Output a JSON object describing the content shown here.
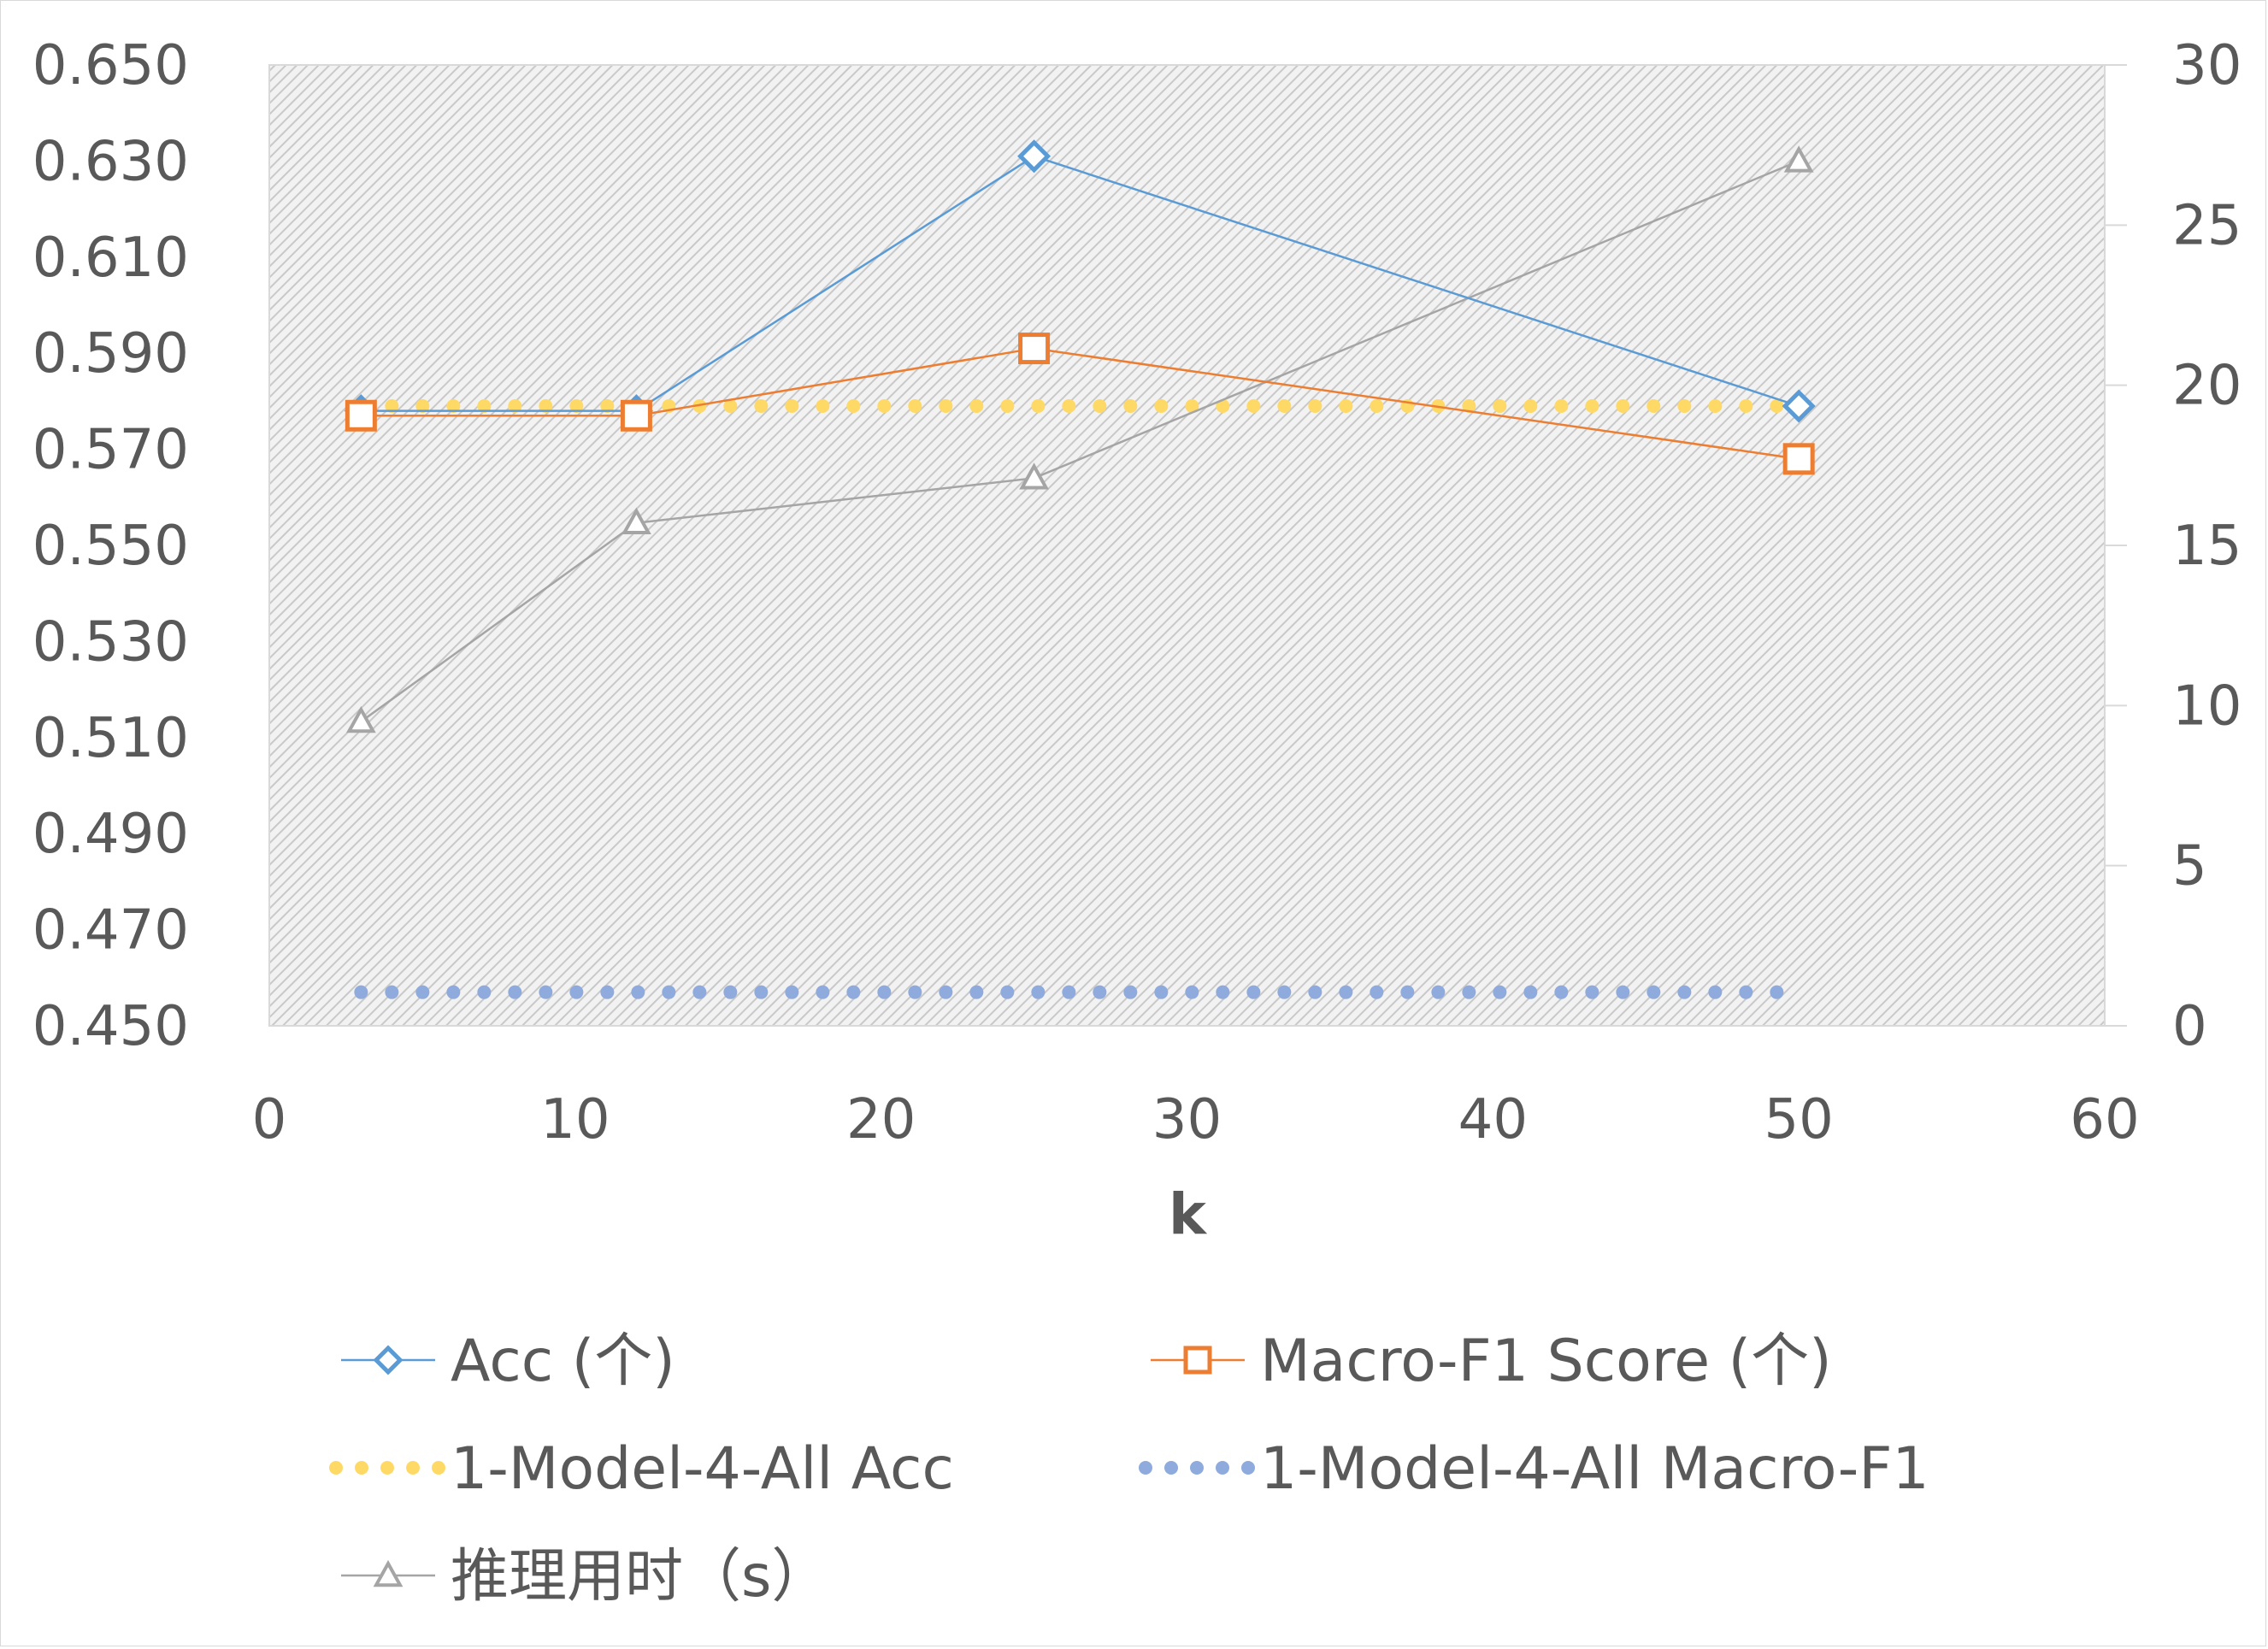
{
  "chart_data": {
    "type": "line",
    "title": "",
    "xlabel": "k",
    "ylabel": "",
    "y2label": "",
    "xlim": [
      0,
      60
    ],
    "ylim": [
      0.45,
      0.65
    ],
    "y2lim": [
      0,
      30
    ],
    "x_ticks": [
      "0",
      "10",
      "20",
      "30",
      "40",
      "50",
      "60"
    ],
    "y_ticks": [
      "0.650",
      "0.630",
      "0.610",
      "0.590",
      "0.570",
      "0.550",
      "0.530",
      "0.510",
      "0.490",
      "0.470",
      "0.450"
    ],
    "y2_ticks": [
      "30",
      "25",
      "20",
      "15",
      "10",
      "5",
      "0"
    ],
    "grid": false,
    "plot_background": "hatched light gray",
    "legend_position": "bottom",
    "series": [
      {
        "name": "Acc (个)",
        "axis": "left",
        "marker": "diamond",
        "line": "solid",
        "color": "#5b9bd5",
        "x": [
          3,
          12,
          25,
          50
        ],
        "values": [
          0.578,
          0.578,
          0.631,
          0.579
        ]
      },
      {
        "name": "Macro-F1 Score (个)",
        "axis": "left",
        "marker": "square",
        "line": "solid",
        "color": "#ed7d31",
        "x": [
          3,
          12,
          25,
          50
        ],
        "values": [
          0.577,
          0.577,
          0.591,
          0.568
        ]
      },
      {
        "name": "1-Model-4-All Acc",
        "axis": "left",
        "marker": "none",
        "line": "dotted",
        "color": "#ffd966",
        "x": [
          3,
          50
        ],
        "values": [
          0.579,
          0.579
        ]
      },
      {
        "name": "1-Model-4-All Macro-F1",
        "axis": "left",
        "marker": "none",
        "line": "dotted",
        "color": "#8faadc",
        "x": [
          3,
          50
        ],
        "values": [
          0.457,
          0.457
        ]
      },
      {
        "name": "推理用时（s）",
        "axis": "right",
        "marker": "triangle",
        "line": "solid",
        "color": "#a5a5a5",
        "x": [
          3,
          12,
          25,
          50
        ],
        "values": [
          9.5,
          15.7,
          17.1,
          27.0
        ]
      }
    ]
  }
}
